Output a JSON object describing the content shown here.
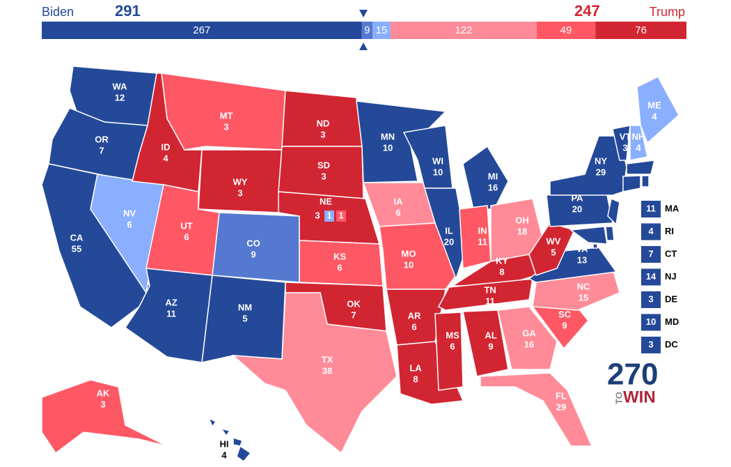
{
  "header": {
    "left_name": "Biden",
    "left_total": "291",
    "right_total": "247",
    "right_name": "Trump"
  },
  "ratings": {
    "safe_d": "#244999",
    "likely_d": "#5579d0",
    "lean_d": "#8aaffe",
    "lean_r": "#ff8b98",
    "likely_r": "#ff5865",
    "safe_r": "#d22532"
  },
  "bar": [
    {
      "value": 267,
      "rating": "safe_d"
    },
    {
      "value": 9,
      "rating": "likely_d"
    },
    {
      "value": 15,
      "rating": "lean_d"
    },
    {
      "value": 122,
      "rating": "lean_r"
    },
    {
      "value": 49,
      "rating": "likely_r"
    },
    {
      "value": 76,
      "rating": "safe_r"
    }
  ],
  "states": [
    {
      "abbr": "WA",
      "ev": 12,
      "rating": "safe_d"
    },
    {
      "abbr": "OR",
      "ev": 7,
      "rating": "safe_d"
    },
    {
      "abbr": "CA",
      "ev": 55,
      "rating": "safe_d"
    },
    {
      "abbr": "NV",
      "ev": 6,
      "rating": "lean_d"
    },
    {
      "abbr": "ID",
      "ev": 4,
      "rating": "safe_r"
    },
    {
      "abbr": "MT",
      "ev": 3,
      "rating": "likely_r"
    },
    {
      "abbr": "WY",
      "ev": 3,
      "rating": "safe_r"
    },
    {
      "abbr": "UT",
      "ev": 6,
      "rating": "likely_r"
    },
    {
      "abbr": "CO",
      "ev": 9,
      "rating": "likely_d"
    },
    {
      "abbr": "AZ",
      "ev": 11,
      "rating": "safe_d"
    },
    {
      "abbr": "NM",
      "ev": 5,
      "rating": "safe_d"
    },
    {
      "abbr": "ND",
      "ev": 3,
      "rating": "safe_r"
    },
    {
      "abbr": "SD",
      "ev": 3,
      "rating": "safe_r"
    },
    {
      "abbr": "NE",
      "rating": "safe_r",
      "splits": [
        {
          "ev": 3,
          "rating": "safe_r"
        },
        {
          "ev": 1,
          "rating": "lean_d"
        },
        {
          "ev": 1,
          "rating": "likely_r"
        }
      ]
    },
    {
      "abbr": "KS",
      "ev": 6,
      "rating": "likely_r"
    },
    {
      "abbr": "OK",
      "ev": 7,
      "rating": "safe_r"
    },
    {
      "abbr": "TX",
      "ev": 38,
      "rating": "lean_r"
    },
    {
      "abbr": "MN",
      "ev": 10,
      "rating": "safe_d"
    },
    {
      "abbr": "IA",
      "ev": 6,
      "rating": "lean_r"
    },
    {
      "abbr": "MO",
      "ev": 10,
      "rating": "likely_r"
    },
    {
      "abbr": "AR",
      "ev": 6,
      "rating": "safe_r"
    },
    {
      "abbr": "LA",
      "ev": 8,
      "rating": "safe_r"
    },
    {
      "abbr": "WI",
      "ev": 10,
      "rating": "safe_d"
    },
    {
      "abbr": "IL",
      "ev": 20,
      "rating": "safe_d"
    },
    {
      "abbr": "MI",
      "ev": 16,
      "rating": "safe_d"
    },
    {
      "abbr": "IN",
      "ev": 11,
      "rating": "likely_r"
    },
    {
      "abbr": "OH",
      "ev": 18,
      "rating": "lean_r"
    },
    {
      "abbr": "KY",
      "ev": 8,
      "rating": "safe_r"
    },
    {
      "abbr": "TN",
      "ev": 11,
      "rating": "safe_r"
    },
    {
      "abbr": "MS",
      "ev": 6,
      "rating": "safe_r"
    },
    {
      "abbr": "AL",
      "ev": 9,
      "rating": "safe_r"
    },
    {
      "abbr": "GA",
      "ev": 16,
      "rating": "lean_r"
    },
    {
      "abbr": "FL",
      "ev": 29,
      "rating": "lean_r"
    },
    {
      "abbr": "SC",
      "ev": 9,
      "rating": "likely_r"
    },
    {
      "abbr": "NC",
      "ev": 15,
      "rating": "lean_r"
    },
    {
      "abbr": "VA",
      "ev": 13,
      "rating": "safe_d"
    },
    {
      "abbr": "WV",
      "ev": 5,
      "rating": "safe_r"
    },
    {
      "abbr": "PA",
      "ev": 20,
      "rating": "safe_d"
    },
    {
      "abbr": "NY",
      "ev": 29,
      "rating": "safe_d"
    },
    {
      "abbr": "VT",
      "ev": 3,
      "rating": "safe_d"
    },
    {
      "abbr": "NH",
      "ev": 4,
      "rating": "lean_d"
    },
    {
      "abbr": "ME",
      "ev": 4,
      "rating": "lean_d"
    },
    {
      "abbr": "AK",
      "ev": 3,
      "rating": "likely_r"
    },
    {
      "abbr": "HI",
      "ev": 4,
      "rating": "safe_d"
    }
  ],
  "small_states": [
    {
      "abbr": "MA",
      "ev": 11,
      "rating": "safe_d"
    },
    {
      "abbr": "RI",
      "ev": 4,
      "rating": "safe_d"
    },
    {
      "abbr": "CT",
      "ev": 7,
      "rating": "safe_d"
    },
    {
      "abbr": "NJ",
      "ev": 14,
      "rating": "safe_d"
    },
    {
      "abbr": "DE",
      "ev": 3,
      "rating": "safe_d"
    },
    {
      "abbr": "MD",
      "ev": 10,
      "rating": "safe_d"
    },
    {
      "abbr": "DC",
      "ev": 3,
      "rating": "safe_d"
    }
  ],
  "logo": {
    "number": "270",
    "to": "TO",
    "win": "WIN"
  }
}
